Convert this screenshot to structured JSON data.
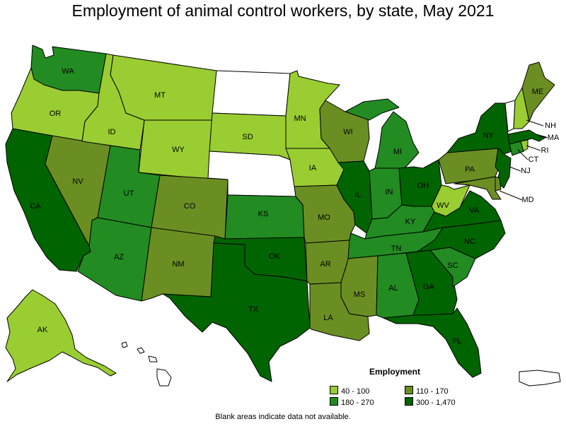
{
  "title": "Employment of animal control workers, by state, May 2021",
  "legend": {
    "title": "Employment",
    "bins": [
      {
        "label": "40 - 100",
        "color": "#9acd32"
      },
      {
        "label": "110 - 170",
        "color": "#6b8e23"
      },
      {
        "label": "180 - 270",
        "color": "#228b22"
      },
      {
        "label": "300 - 1,470",
        "color": "#006400"
      }
    ]
  },
  "note": "Blank areas indicate data not available.",
  "states": {
    "WA": {
      "label": "WA",
      "bin": 2
    },
    "OR": {
      "label": "OR",
      "bin": 0
    },
    "CA": {
      "label": "CA",
      "bin": 3
    },
    "NV": {
      "label": "NV",
      "bin": 1
    },
    "ID": {
      "label": "ID",
      "bin": 0
    },
    "MT": {
      "label": "MT",
      "bin": 0
    },
    "WY": {
      "label": "WY",
      "bin": 0
    },
    "UT": {
      "label": "UT",
      "bin": 2
    },
    "AZ": {
      "label": "AZ",
      "bin": 2
    },
    "CO": {
      "label": "CO",
      "bin": 1
    },
    "NM": {
      "label": "NM",
      "bin": 1
    },
    "ND": {
      "label": "",
      "bin": null
    },
    "SD": {
      "label": "SD",
      "bin": 0
    },
    "NE": {
      "label": "",
      "bin": null
    },
    "KS": {
      "label": "KS",
      "bin": 2
    },
    "OK": {
      "label": "OK",
      "bin": 3
    },
    "TX": {
      "label": "TX",
      "bin": 3
    },
    "MN": {
      "label": "MN",
      "bin": 0
    },
    "IA": {
      "label": "IA",
      "bin": 0
    },
    "MO": {
      "label": "MO",
      "bin": 1
    },
    "AR": {
      "label": "AR",
      "bin": 1
    },
    "LA": {
      "label": "LA",
      "bin": 1
    },
    "WI": {
      "label": "WI",
      "bin": 1
    },
    "IL": {
      "label": "IL",
      "bin": 3
    },
    "MI": {
      "label": "MI",
      "bin": 2
    },
    "IN": {
      "label": "IN",
      "bin": 2
    },
    "OH": {
      "label": "OH",
      "bin": 3
    },
    "KY": {
      "label": "KY",
      "bin": 2
    },
    "TN": {
      "label": "TN",
      "bin": 2
    },
    "MS": {
      "label": "MS",
      "bin": 1
    },
    "AL": {
      "label": "AL",
      "bin": 2
    },
    "GA": {
      "label": "GA",
      "bin": 3
    },
    "FL": {
      "label": "FL",
      "bin": 3
    },
    "SC": {
      "label": "SC",
      "bin": 2
    },
    "NC": {
      "label": "NC",
      "bin": 3
    },
    "VA": {
      "label": "VA",
      "bin": 3
    },
    "WV": {
      "label": "WV",
      "bin": 0
    },
    "PA": {
      "label": "PA",
      "bin": 1
    },
    "NY": {
      "label": "NY",
      "bin": 3
    },
    "VT": {
      "label": "",
      "bin": null
    },
    "NH": {
      "label": "NH",
      "bin": 0
    },
    "ME": {
      "label": "ME",
      "bin": 1
    },
    "MA": {
      "label": "MA",
      "bin": 3
    },
    "RI": {
      "label": "RI",
      "bin": 0
    },
    "CT": {
      "label": "CT",
      "bin": 2
    },
    "NJ": {
      "label": "NJ",
      "bin": 3
    },
    "DE": {
      "label": "",
      "bin": 1
    },
    "MD": {
      "label": "MD",
      "bin": 1
    },
    "AK": {
      "label": "AK",
      "bin": 0
    },
    "HI": {
      "label": "",
      "bin": null
    },
    "PR": {
      "label": "",
      "bin": null
    }
  }
}
